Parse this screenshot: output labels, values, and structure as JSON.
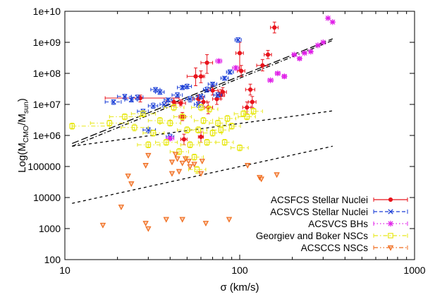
{
  "chart_data": {
    "type": "scatter",
    "xscale": "log",
    "yscale": "log",
    "xlim": [
      10,
      1000
    ],
    "ylim": [
      100,
      10000000000
    ],
    "grid": false,
    "legend_position": "bottom-right",
    "xlabel": {
      "prefix": "σ (km/s)"
    },
    "ylabel": {
      "prefix": "Log(M",
      "sub1": "CMO",
      "mid": "/M",
      "sub2": "sun",
      "suffix": ")"
    },
    "x_ticks": [
      {
        "value": 10,
        "label": "10"
      },
      {
        "value": 100,
        "label": "100"
      },
      {
        "value": 1000,
        "label": "1000"
      }
    ],
    "y_ticks": [
      {
        "value": 100,
        "label": "100"
      },
      {
        "value": 1000,
        "label": "1000"
      },
      {
        "value": 10000,
        "label": "10000"
      },
      {
        "value": 100000,
        "label": "100000"
      },
      {
        "value": 1000000,
        "label": "1e+06"
      },
      {
        "value": 10000000,
        "label": "1e+07"
      },
      {
        "value": 100000000,
        "label": "1e+08"
      },
      {
        "value": 1000000000,
        "label": "1e+09"
      },
      {
        "value": 10000000000,
        "label": "1e+10"
      }
    ],
    "series": [
      {
        "name": "ACSFCS Stellar Nuclei",
        "color": "#e8141c",
        "marker": "dot",
        "line": "solid",
        "points": [
          [
            27,
            16000000,
            17,
            45,
            12000000,
            20000000
          ],
          [
            42,
            12000000,
            38,
            47,
            9000000,
            16000000
          ],
          [
            46,
            11000000,
            43,
            49,
            9000000,
            14000000
          ],
          [
            47,
            4000000,
            45,
            49,
            3000000,
            5500000
          ],
          [
            48,
            750000,
            46,
            50,
            500000,
            1100000
          ],
          [
            56,
            80000000,
            50,
            62,
            40000000,
            150000000
          ],
          [
            58,
            15000000,
            54,
            62,
            10000000,
            20000000
          ],
          [
            60,
            80000000,
            57,
            63,
            50000000,
            120000000
          ],
          [
            60,
            900000,
            58,
            62,
            600000,
            1300000
          ],
          [
            62,
            12000000,
            59,
            65,
            8000000,
            18000000
          ],
          [
            65,
            220000000,
            60,
            70,
            100000000,
            400000000
          ],
          [
            66,
            8000000,
            63,
            70,
            5000000,
            12000000
          ],
          [
            70,
            28000000,
            66,
            75,
            20000000,
            40000000
          ],
          [
            74,
            15000000,
            70,
            78,
            10000000,
            20000000
          ],
          [
            78,
            20000000,
            74,
            82,
            15000000,
            30000000
          ],
          [
            80,
            25000000,
            76,
            84,
            18000000,
            35000000
          ],
          [
            100,
            450000000,
            95,
            105,
            130000000,
            1000000000
          ],
          [
            102,
            120000000,
            97,
            107,
            80000000,
            180000000
          ],
          [
            110,
            8000000,
            104,
            116,
            5000000,
            12000000
          ],
          [
            115,
            30000000,
            108,
            122,
            20000000,
            45000000
          ],
          [
            118,
            12000000,
            112,
            124,
            8000000,
            18000000
          ],
          [
            135,
            180000000,
            125,
            145,
            120000000,
            280000000
          ],
          [
            145,
            400000000,
            138,
            152,
            300000000,
            550000000
          ],
          [
            158,
            3000000000,
            150,
            166,
            2000000000,
            4500000000
          ]
        ]
      },
      {
        "name": "ACSVCS Stellar Nuclei",
        "color": "#1a3ed6",
        "marker": "cross",
        "line": "dashed",
        "points": [
          [
            19,
            12000000,
            17,
            21,
            10000000,
            14000000
          ],
          [
            22,
            18000000,
            20,
            24,
            15000000,
            21000000
          ],
          [
            24,
            14000000,
            22,
            26,
            12000000,
            16000000
          ],
          [
            26,
            17000000,
            24,
            28,
            14000000,
            20000000
          ],
          [
            28,
            6000000,
            26,
            30,
            5000000,
            7000000
          ],
          [
            30,
            1500000,
            28,
            33,
            1200000,
            1800000
          ],
          [
            32,
            9000000,
            30,
            34,
            7500000,
            11000000
          ],
          [
            33,
            30000000,
            31,
            35,
            25000000,
            35000000
          ],
          [
            35,
            25000000,
            33,
            37,
            21000000,
            30000000
          ],
          [
            37,
            10000000,
            35,
            39,
            8000000,
            12000000
          ],
          [
            39,
            14000000,
            37,
            41,
            12000000,
            16000000
          ],
          [
            40,
            900000,
            38,
            42,
            750000,
            1100000
          ],
          [
            44,
            20000000,
            41,
            47,
            17000000,
            24000000
          ],
          [
            47,
            35000000,
            44,
            50,
            30000000,
            40000000
          ],
          [
            50,
            38000000,
            47,
            53,
            32000000,
            45000000
          ],
          [
            52,
            15000000,
            49,
            55,
            12000000,
            18000000
          ],
          [
            58,
            10000000,
            55,
            61,
            8000000,
            12000000
          ],
          [
            60,
            18000000,
            57,
            63,
            15000000,
            21000000
          ],
          [
            65,
            30000000,
            62,
            68,
            25000000,
            36000000
          ],
          [
            70,
            45000000,
            66,
            74,
            38000000,
            52000000
          ],
          [
            75,
            20000000,
            71,
            79,
            17000000,
            24000000
          ],
          [
            82,
            70000000,
            78,
            86,
            60000000,
            80000000
          ],
          [
            88,
            110000000,
            84,
            92,
            95000000,
            130000000
          ],
          [
            98,
            1200000000,
            94,
            102,
            1000000000,
            1400000000
          ]
        ]
      },
      {
        "name": "ACSVCS BHs",
        "color": "#e020e8",
        "marker": "star",
        "line": "dotted",
        "points": [
          [
            40,
            800000,
            38,
            42,
            700000,
            900000
          ],
          [
            76,
            250000000,
            73,
            79,
            220000000,
            280000000
          ],
          [
            95,
            150000000,
            91,
            99,
            130000000,
            170000000
          ],
          [
            150,
            60000000,
            145,
            155,
            55000000,
            65000000
          ],
          [
            165,
            100000000,
            160,
            170,
            90000000,
            110000000
          ],
          [
            180,
            80000000,
            175,
            185,
            70000000,
            90000000
          ],
          [
            205,
            400000000,
            200,
            210,
            370000000,
            430000000
          ],
          [
            220,
            300000000,
            215,
            225,
            270000000,
            330000000
          ],
          [
            235,
            450000000,
            230,
            240,
            420000000,
            480000000
          ],
          [
            255,
            500000000,
            250,
            260,
            460000000,
            540000000
          ],
          [
            280,
            800000000,
            275,
            285,
            750000000,
            850000000
          ],
          [
            300,
            1000000000,
            295,
            305,
            950000000,
            1050000000
          ],
          [
            320,
            6000000000,
            315,
            325,
            5700000000,
            6300000000
          ],
          [
            340,
            4500000000,
            335,
            345,
            4200000000,
            4800000000
          ]
        ]
      },
      {
        "name": "Georgiev and Boker NSCs",
        "color": "#e8e81a",
        "marker": "square",
        "line": "dashdot",
        "points": [
          [
            11,
            2000000,
            11,
            18,
            1600000,
            2500000
          ],
          [
            18,
            2500000,
            14,
            23,
            2000000,
            3100000
          ],
          [
            22,
            4000000,
            18,
            27,
            3200000,
            5000000
          ],
          [
            25,
            1800000,
            21,
            30,
            1400000,
            2300000
          ],
          [
            28,
            5000000,
            24,
            33,
            4000000,
            6300000
          ],
          [
            30,
            500000,
            26,
            35,
            400000,
            630000
          ],
          [
            32,
            1200000,
            28,
            37,
            950000,
            1500000
          ],
          [
            35,
            3000000,
            30,
            40,
            2400000,
            3800000
          ],
          [
            38,
            600000,
            33,
            44,
            480000,
            750000
          ],
          [
            40,
            2500000,
            35,
            46,
            2000000,
            3100000
          ],
          [
            42,
            8000000,
            37,
            48,
            6300000,
            10000000
          ],
          [
            45,
            300000,
            40,
            51,
            240000,
            380000
          ],
          [
            47,
            4000000,
            42,
            53,
            3200000,
            5000000
          ],
          [
            50,
            1500000,
            44,
            56,
            1200000,
            1900000
          ],
          [
            52,
            500000,
            46,
            59,
            400000,
            630000
          ],
          [
            55,
            200000,
            49,
            62,
            160000,
            250000
          ],
          [
            57,
            80000,
            51,
            64,
            60000,
            100000
          ],
          [
            58,
            1500000,
            52,
            65,
            1200000,
            1900000
          ],
          [
            60,
            8000000,
            53,
            67,
            6300000,
            10000000
          ],
          [
            62,
            3000000,
            55,
            70,
            2400000,
            3800000
          ],
          [
            65,
            600000,
            58,
            73,
            480000,
            750000
          ],
          [
            67,
            7000000,
            60,
            75,
            5600000,
            8800000
          ],
          [
            70,
            1200000,
            62,
            79,
            950000,
            1500000
          ],
          [
            75,
            2500000,
            67,
            84,
            2000000,
            3100000
          ],
          [
            78,
            1500000,
            70,
            87,
            1200000,
            1900000
          ],
          [
            82,
            600000,
            73,
            92,
            480000,
            750000
          ],
          [
            85,
            3500000,
            76,
            95,
            2800000,
            4400000
          ],
          [
            90,
            2000000,
            80,
            101,
            1600000,
            2500000
          ],
          [
            100,
            400000,
            89,
            112,
            320000,
            500000
          ],
          [
            105,
            5000000,
            93,
            118,
            4000000,
            6300000
          ],
          [
            110,
            4000000,
            98,
            123,
            3200000,
            5000000
          ],
          [
            120,
            6000000,
            107,
            135,
            4800000,
            7500000
          ]
        ]
      },
      {
        "name": "ACSCCS NSCs",
        "color": "#f06a1a",
        "marker": "triangle-down",
        "line": "dashdotdot",
        "points": [
          [
            16.5,
            1300
          ],
          [
            21,
            5000
          ],
          [
            23,
            50000
          ],
          [
            24,
            28000
          ],
          [
            29,
            1500
          ],
          [
            29,
            110000
          ],
          [
            30,
            1000
          ],
          [
            30,
            230000
          ],
          [
            38,
            2000
          ],
          [
            41,
            60000
          ],
          [
            41,
            140000
          ],
          [
            43,
            250000
          ],
          [
            44,
            180000
          ],
          [
            45,
            70000
          ],
          [
            47,
            2000
          ],
          [
            47,
            130000
          ],
          [
            49,
            180000
          ],
          [
            51,
            150000
          ],
          [
            52,
            100000
          ],
          [
            55,
            120000
          ],
          [
            60,
            60000
          ],
          [
            61,
            150000
          ],
          [
            64,
            1500
          ],
          [
            87,
            2000
          ],
          [
            111,
            110000
          ],
          [
            130,
            45000
          ],
          [
            133,
            40000
          ],
          [
            163,
            55000
          ]
        ]
      }
    ],
    "fit_lines": [
      {
        "style": "longdash",
        "x": [
          11,
          340
        ],
        "y": [
          550000,
          1300000000
        ]
      },
      {
        "style": "dashdot",
        "x": [
          11,
          340
        ],
        "y": [
          450000,
          1150000000
        ]
      },
      {
        "style": "shortdash",
        "x": [
          11,
          340
        ],
        "y": [
          450000,
          6200000
        ]
      },
      {
        "style": "shortdash",
        "x": [
          11,
          340
        ],
        "y": [
          6500,
          450000
        ]
      }
    ]
  }
}
